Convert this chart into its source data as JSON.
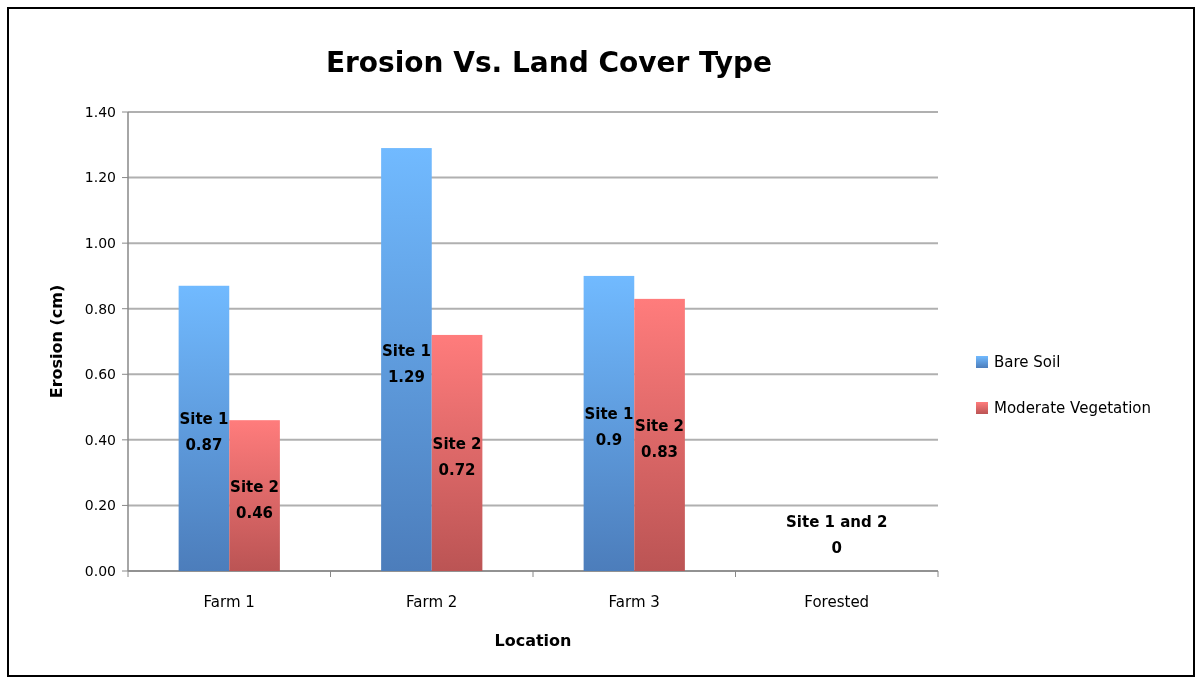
{
  "chart_data": {
    "type": "bar",
    "title": "Erosion Vs. Land Cover Type",
    "xlabel": "Location",
    "ylabel": "Erosion (cm)",
    "categories": [
      "Farm 1",
      "Farm 2",
      "Farm 3",
      "Forested"
    ],
    "series": [
      {
        "name": "Bare Soil",
        "color": "#5b96e0",
        "values": [
          0.87,
          1.29,
          0.9,
          0
        ],
        "value_labels": [
          "Site 1 0.87",
          "Site 1 1.29",
          "Site 1 0.9",
          null
        ]
      },
      {
        "name": "Moderate Vegetation",
        "color": "#e06464",
        "values": [
          0.46,
          0.72,
          0.83,
          0
        ],
        "value_labels": [
          "Site 2 0.46",
          "Site 2 0.72",
          "Site 2 0.83",
          null
        ]
      }
    ],
    "annotations": [
      {
        "text": "Site 1 and 2 0",
        "x": "Forested",
        "y": 0
      }
    ],
    "ylim": [
      0,
      1.4
    ],
    "yticks": [
      {
        "value": 0,
        "label": "0.00"
      },
      {
        "value": 0.2,
        "label": "0.20"
      },
      {
        "value": 0.4,
        "label": "0.40"
      },
      {
        "value": 0.6,
        "label": "0.60"
      },
      {
        "value": 0.8,
        "label": "0.80"
      },
      {
        "value": 1,
        "label": "1.00"
      },
      {
        "value": 1.2,
        "label": "1.20"
      },
      {
        "value": 1.4,
        "label": "1.40"
      }
    ],
    "grid": "y",
    "legend": "right"
  }
}
